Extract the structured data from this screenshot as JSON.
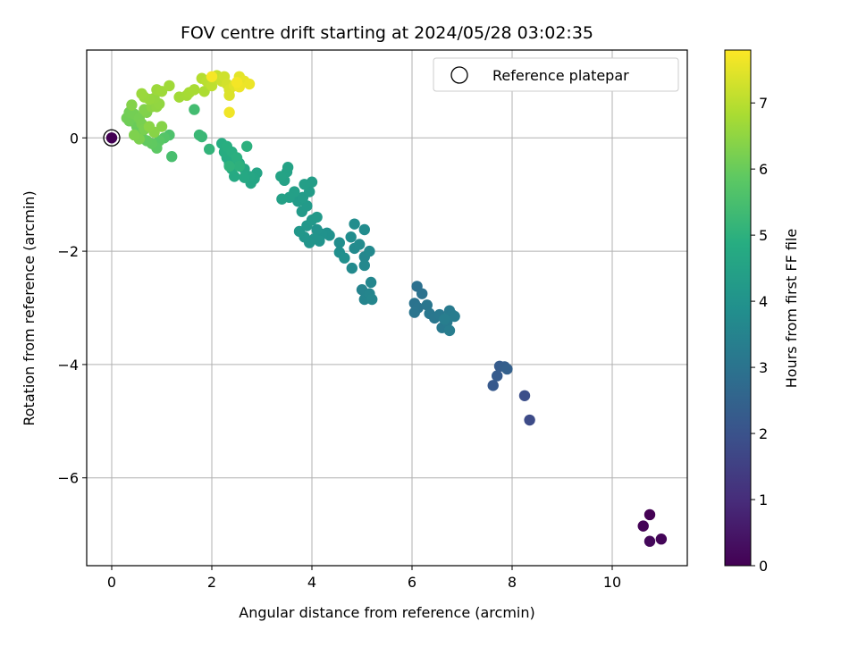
{
  "chart_data": {
    "type": "scatter",
    "title": "FOV centre drift starting at 2024/05/28 03:02:35",
    "xlabel": "Angular distance from reference (arcmin)",
    "ylabel": "Rotation from reference (arcmin)",
    "xlim": [
      -0.5,
      11.5
    ],
    "ylim": [
      -7.55,
      1.55
    ],
    "xticks": [
      0,
      2,
      4,
      6,
      8,
      10
    ],
    "yticks": [
      0,
      -2,
      -4,
      -6
    ],
    "xtick_labels": [
      "0",
      "2",
      "4",
      "6",
      "8",
      "10"
    ],
    "ytick_labels": [
      "0",
      "−2",
      "−4",
      "−6"
    ],
    "grid": true,
    "legend": {
      "label": "Reference platepar",
      "placement": "top-right"
    },
    "colorbar": {
      "label": "Hours from first FF file",
      "range": [
        0,
        7.8
      ],
      "ticks": [
        0,
        1,
        2,
        3,
        4,
        5,
        6,
        7
      ],
      "tick_labels": [
        "0",
        "1",
        "2",
        "3",
        "4",
        "5",
        "6",
        "7"
      ],
      "colormap": "viridis"
    },
    "reference_point": {
      "x": 0,
      "y": 0
    },
    "points": [
      {
        "x": 10.75,
        "y": -6.65,
        "t": 0.0
      },
      {
        "x": 10.62,
        "y": -6.85,
        "t": 0.05
      },
      {
        "x": 10.98,
        "y": -7.08,
        "t": 0.1
      },
      {
        "x": 10.75,
        "y": -7.12,
        "t": 0.15
      },
      {
        "x": 8.35,
        "y": -4.98,
        "t": 1.8
      },
      {
        "x": 8.25,
        "y": -4.55,
        "t": 1.9
      },
      {
        "x": 7.62,
        "y": -4.37,
        "t": 2.2
      },
      {
        "x": 7.7,
        "y": -4.2,
        "t": 2.25
      },
      {
        "x": 7.75,
        "y": -4.03,
        "t": 2.3
      },
      {
        "x": 7.85,
        "y": -4.04,
        "t": 2.35
      },
      {
        "x": 7.9,
        "y": -4.08,
        "t": 2.4
      },
      {
        "x": 6.1,
        "y": -2.62,
        "t": 2.9
      },
      {
        "x": 6.2,
        "y": -2.75,
        "t": 2.95
      },
      {
        "x": 6.05,
        "y": -2.92,
        "t": 3.0
      },
      {
        "x": 6.12,
        "y": -3.0,
        "t": 3.02
      },
      {
        "x": 6.05,
        "y": -3.08,
        "t": 3.05
      },
      {
        "x": 6.3,
        "y": -2.95,
        "t": 3.08
      },
      {
        "x": 6.35,
        "y": -3.1,
        "t": 3.1
      },
      {
        "x": 6.45,
        "y": -3.18,
        "t": 3.12
      },
      {
        "x": 6.55,
        "y": -3.12,
        "t": 3.15
      },
      {
        "x": 6.6,
        "y": -3.35,
        "t": 3.18
      },
      {
        "x": 6.7,
        "y": -3.25,
        "t": 3.2
      },
      {
        "x": 6.75,
        "y": -3.05,
        "t": 3.22
      },
      {
        "x": 6.8,
        "y": -3.12,
        "t": 3.25
      },
      {
        "x": 6.85,
        "y": -3.15,
        "t": 3.28
      },
      {
        "x": 6.75,
        "y": -3.4,
        "t": 3.3
      },
      {
        "x": 6.65,
        "y": -3.2,
        "t": 3.32
      },
      {
        "x": 5.0,
        "y": -2.68,
        "t": 3.5
      },
      {
        "x": 5.05,
        "y": -2.85,
        "t": 3.52
      },
      {
        "x": 5.15,
        "y": -2.75,
        "t": 3.55
      },
      {
        "x": 5.2,
        "y": -2.85,
        "t": 3.58
      },
      {
        "x": 5.18,
        "y": -2.55,
        "t": 3.6
      },
      {
        "x": 5.05,
        "y": -2.1,
        "t": 3.62
      },
      {
        "x": 5.05,
        "y": -2.25,
        "t": 3.65
      },
      {
        "x": 5.15,
        "y": -2.0,
        "t": 3.68
      },
      {
        "x": 4.8,
        "y": -2.3,
        "t": 3.7
      },
      {
        "x": 4.85,
        "y": -1.95,
        "t": 3.72
      },
      {
        "x": 4.95,
        "y": -1.88,
        "t": 3.75
      },
      {
        "x": 5.05,
        "y": -1.62,
        "t": 3.78
      },
      {
        "x": 4.85,
        "y": -1.52,
        "t": 3.8
      },
      {
        "x": 4.78,
        "y": -1.75,
        "t": 3.82
      },
      {
        "x": 4.55,
        "y": -1.85,
        "t": 3.85
      },
      {
        "x": 4.55,
        "y": -2.02,
        "t": 3.88
      },
      {
        "x": 4.65,
        "y": -2.12,
        "t": 3.9
      },
      {
        "x": 4.3,
        "y": -1.68,
        "t": 3.92
      },
      {
        "x": 4.35,
        "y": -1.72,
        "t": 3.95
      },
      {
        "x": 4.2,
        "y": -1.7,
        "t": 3.97
      },
      {
        "x": 4.1,
        "y": -1.62,
        "t": 4.0
      },
      {
        "x": 4.15,
        "y": -1.82,
        "t": 4.02
      },
      {
        "x": 4.05,
        "y": -1.78,
        "t": 4.05
      },
      {
        "x": 3.95,
        "y": -1.85,
        "t": 4.07
      },
      {
        "x": 3.85,
        "y": -1.75,
        "t": 4.1
      },
      {
        "x": 3.75,
        "y": -1.65,
        "t": 4.12
      },
      {
        "x": 3.9,
        "y": -1.55,
        "t": 4.15
      },
      {
        "x": 4.0,
        "y": -1.45,
        "t": 4.18
      },
      {
        "x": 4.1,
        "y": -1.4,
        "t": 4.2
      },
      {
        "x": 3.8,
        "y": -1.3,
        "t": 4.22
      },
      {
        "x": 3.9,
        "y": -1.2,
        "t": 4.25
      },
      {
        "x": 3.72,
        "y": -1.12,
        "t": 4.28
      },
      {
        "x": 3.82,
        "y": -1.05,
        "t": 4.3
      },
      {
        "x": 3.95,
        "y": -0.95,
        "t": 4.32
      },
      {
        "x": 4.0,
        "y": -0.78,
        "t": 4.35
      },
      {
        "x": 3.85,
        "y": -0.82,
        "t": 4.38
      },
      {
        "x": 3.65,
        "y": -0.95,
        "t": 4.4
      },
      {
        "x": 3.55,
        "y": -1.05,
        "t": 4.42
      },
      {
        "x": 3.4,
        "y": -1.08,
        "t": 4.45
      },
      {
        "x": 3.45,
        "y": -0.75,
        "t": 4.48
      },
      {
        "x": 3.5,
        "y": -0.6,
        "t": 4.5
      },
      {
        "x": 3.52,
        "y": -0.52,
        "t": 4.52
      },
      {
        "x": 3.38,
        "y": -0.68,
        "t": 4.55
      },
      {
        "x": 2.9,
        "y": -0.62,
        "t": 4.58
      },
      {
        "x": 2.85,
        "y": -0.72,
        "t": 4.6
      },
      {
        "x": 2.78,
        "y": -0.8,
        "t": 4.62
      },
      {
        "x": 2.75,
        "y": -0.68,
        "t": 4.65
      },
      {
        "x": 2.65,
        "y": -0.55,
        "t": 4.68
      },
      {
        "x": 2.55,
        "y": -0.45,
        "t": 4.7
      },
      {
        "x": 2.65,
        "y": -0.7,
        "t": 4.72
      },
      {
        "x": 2.45,
        "y": -0.68,
        "t": 4.75
      },
      {
        "x": 2.4,
        "y": -0.55,
        "t": 4.78
      },
      {
        "x": 2.35,
        "y": -0.45,
        "t": 4.8
      },
      {
        "x": 2.3,
        "y": -0.35,
        "t": 4.82
      },
      {
        "x": 2.25,
        "y": -0.25,
        "t": 4.85
      },
      {
        "x": 2.2,
        "y": -0.1,
        "t": 4.88
      },
      {
        "x": 2.3,
        "y": -0.15,
        "t": 4.9
      },
      {
        "x": 2.4,
        "y": -0.25,
        "t": 4.92
      },
      {
        "x": 2.5,
        "y": -0.35,
        "t": 4.95
      },
      {
        "x": 2.7,
        "y": -0.15,
        "t": 4.98
      },
      {
        "x": 2.55,
        "y": -0.5,
        "t": 5.0
      },
      {
        "x": 2.35,
        "y": -0.5,
        "t": 5.05
      },
      {
        "x": 1.95,
        "y": -0.2,
        "t": 5.1
      },
      {
        "x": 1.8,
        "y": 0.02,
        "t": 5.2
      },
      {
        "x": 1.75,
        "y": 0.05,
        "t": 5.25
      },
      {
        "x": 1.65,
        "y": 0.5,
        "t": 5.4
      },
      {
        "x": 1.2,
        "y": -0.33,
        "t": 5.5
      },
      {
        "x": 1.15,
        "y": 0.05,
        "t": 5.6
      },
      {
        "x": 1.05,
        "y": 0.0,
        "t": 5.7
      },
      {
        "x": 0.95,
        "y": -0.05,
        "t": 5.8
      },
      {
        "x": 0.9,
        "y": -0.18,
        "t": 5.85
      },
      {
        "x": 0.8,
        "y": -0.1,
        "t": 5.9
      },
      {
        "x": 0.7,
        "y": -0.05,
        "t": 5.92
      },
      {
        "x": 0.6,
        "y": 0.02,
        "t": 5.95
      },
      {
        "x": 0.55,
        "y": 0.1,
        "t": 5.97
      },
      {
        "x": 0.5,
        "y": 0.2,
        "t": 6.0
      },
      {
        "x": 0.45,
        "y": 0.28,
        "t": 6.02
      },
      {
        "x": 0.4,
        "y": 0.35,
        "t": 6.05
      },
      {
        "x": 0.35,
        "y": 0.3,
        "t": 6.07
      },
      {
        "x": 0.3,
        "y": 0.35,
        "t": 6.1
      },
      {
        "x": 0.35,
        "y": 0.45,
        "t": 6.12
      },
      {
        "x": 0.45,
        "y": 0.42,
        "t": 6.15
      },
      {
        "x": 0.55,
        "y": 0.35,
        "t": 6.17
      },
      {
        "x": 0.6,
        "y": 0.25,
        "t": 6.2
      },
      {
        "x": 0.65,
        "y": 0.15,
        "t": 6.22
      },
      {
        "x": 0.55,
        "y": -0.02,
        "t": 6.25
      },
      {
        "x": 0.45,
        "y": 0.05,
        "t": 6.27
      },
      {
        "x": 0.7,
        "y": 0.45,
        "t": 6.3
      },
      {
        "x": 0.65,
        "y": 0.5,
        "t": 6.32
      },
      {
        "x": 0.4,
        "y": 0.58,
        "t": 6.35
      },
      {
        "x": 1.0,
        "y": 0.2,
        "t": 6.38
      },
      {
        "x": 0.85,
        "y": 0.1,
        "t": 6.4
      },
      {
        "x": 0.75,
        "y": 0.2,
        "t": 6.42
      },
      {
        "x": 0.8,
        "y": 0.55,
        "t": 6.45
      },
      {
        "x": 0.9,
        "y": 0.55,
        "t": 6.5
      },
      {
        "x": 0.95,
        "y": 0.6,
        "t": 6.52
      },
      {
        "x": 0.85,
        "y": 0.7,
        "t": 6.55
      },
      {
        "x": 0.75,
        "y": 0.68,
        "t": 6.58
      },
      {
        "x": 0.65,
        "y": 0.72,
        "t": 6.6
      },
      {
        "x": 0.6,
        "y": 0.78,
        "t": 6.62
      },
      {
        "x": 0.9,
        "y": 0.85,
        "t": 6.65
      },
      {
        "x": 1.0,
        "y": 0.82,
        "t": 6.68
      },
      {
        "x": 1.15,
        "y": 0.92,
        "t": 6.7
      },
      {
        "x": 1.35,
        "y": 0.72,
        "t": 6.72
      },
      {
        "x": 1.5,
        "y": 0.75,
        "t": 6.75
      },
      {
        "x": 1.55,
        "y": 0.8,
        "t": 6.78
      },
      {
        "x": 1.65,
        "y": 0.85,
        "t": 6.8
      },
      {
        "x": 1.85,
        "y": 0.82,
        "t": 6.85
      },
      {
        "x": 1.95,
        "y": 0.95,
        "t": 6.9
      },
      {
        "x": 1.8,
        "y": 1.05,
        "t": 6.95
      },
      {
        "x": 1.9,
        "y": 1.0,
        "t": 7.0
      },
      {
        "x": 2.0,
        "y": 0.92,
        "t": 7.05
      },
      {
        "x": 2.05,
        "y": 1.05,
        "t": 7.1
      },
      {
        "x": 2.1,
        "y": 1.1,
        "t": 7.15
      },
      {
        "x": 2.2,
        "y": 1.0,
        "t": 7.2
      },
      {
        "x": 2.25,
        "y": 1.08,
        "t": 7.25
      },
      {
        "x": 2.3,
        "y": 0.95,
        "t": 7.3
      },
      {
        "x": 2.35,
        "y": 0.85,
        "t": 7.35
      },
      {
        "x": 2.35,
        "y": 0.75,
        "t": 7.4
      },
      {
        "x": 2.45,
        "y": 0.92,
        "t": 7.45
      },
      {
        "x": 2.55,
        "y": 1.08,
        "t": 7.5
      },
      {
        "x": 2.65,
        "y": 1.0,
        "t": 7.55
      },
      {
        "x": 2.75,
        "y": 0.95,
        "t": 7.6
      },
      {
        "x": 2.55,
        "y": 0.9,
        "t": 7.62
      },
      {
        "x": 2.35,
        "y": 0.45,
        "t": 7.65
      },
      {
        "x": 2.5,
        "y": 0.98,
        "t": 7.7
      },
      {
        "x": 2.0,
        "y": 1.08,
        "t": 7.72
      }
    ]
  }
}
